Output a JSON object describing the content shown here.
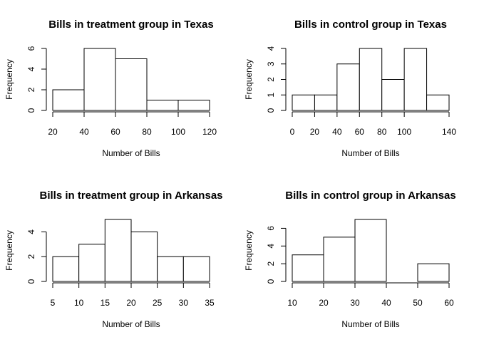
{
  "chart_data": [
    {
      "type": "histogram",
      "title": "Bills in treatment group in Texas",
      "xlabel": "Number of Bills",
      "ylabel": "Frequency",
      "bins": [
        [
          20,
          40
        ],
        [
          40,
          60
        ],
        [
          60,
          80
        ],
        [
          80,
          100
        ],
        [
          100,
          120
        ]
      ],
      "values": [
        2,
        6,
        5,
        1,
        1
      ],
      "xlim": [
        20,
        120
      ],
      "ylim": [
        0,
        6
      ],
      "xticks": [
        20,
        40,
        60,
        80,
        100,
        120
      ],
      "yticks": [
        0,
        2,
        4,
        6
      ]
    },
    {
      "type": "histogram",
      "title": "Bills in control group in Texas",
      "xlabel": "Number of Bills",
      "ylabel": "Frequency",
      "bins": [
        [
          0,
          20
        ],
        [
          20,
          40
        ],
        [
          40,
          60
        ],
        [
          60,
          80
        ],
        [
          80,
          100
        ],
        [
          100,
          120
        ],
        [
          120,
          140
        ]
      ],
      "values": [
        1,
        1,
        3,
        4,
        2,
        4,
        1
      ],
      "xlim": [
        0,
        140
      ],
      "ylim": [
        0,
        4
      ],
      "xticks": [
        0,
        20,
        40,
        60,
        80,
        100,
        140
      ],
      "yticks": [
        0,
        1,
        2,
        3,
        4
      ]
    },
    {
      "type": "histogram",
      "title": "Bills in treatment group in Arkansas",
      "xlabel": "Number of Bills",
      "ylabel": "Frequency",
      "bins": [
        [
          5,
          10
        ],
        [
          10,
          15
        ],
        [
          15,
          20
        ],
        [
          20,
          25
        ],
        [
          25,
          30
        ],
        [
          30,
          35
        ]
      ],
      "values": [
        2,
        3,
        5,
        4,
        2,
        2
      ],
      "xlim": [
        5,
        35
      ],
      "ylim": [
        0,
        5
      ],
      "xticks": [
        5,
        10,
        15,
        20,
        25,
        30,
        35
      ],
      "yticks": [
        0,
        2,
        4
      ]
    },
    {
      "type": "histogram",
      "title": "Bills in control group in Arkansas",
      "xlabel": "Number of Bills",
      "ylabel": "Frequency",
      "bins": [
        [
          10,
          20
        ],
        [
          20,
          30
        ],
        [
          30,
          40
        ],
        [
          40,
          50
        ],
        [
          50,
          60
        ]
      ],
      "values": [
        3,
        5,
        7,
        0,
        2
      ],
      "xlim": [
        10,
        60
      ],
      "ylim": [
        0,
        7
      ],
      "xticks": [
        10,
        20,
        30,
        40,
        50,
        60
      ],
      "yticks": [
        0,
        2,
        4,
        6
      ]
    }
  ]
}
